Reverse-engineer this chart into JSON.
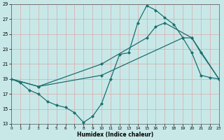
{
  "xlabel": "Humidex (Indice chaleur)",
  "bg_color": "#c8e8e8",
  "line_color": "#1a7070",
  "grid_color": "#dba8a8",
  "xlim": [
    0,
    23
  ],
  "ylim": [
    13,
    29
  ],
  "yticks": [
    13,
    15,
    17,
    19,
    21,
    23,
    25,
    27,
    29
  ],
  "xticks": [
    0,
    1,
    2,
    3,
    4,
    5,
    6,
    7,
    8,
    9,
    10,
    11,
    12,
    13,
    14,
    15,
    16,
    17,
    18,
    19,
    20,
    21,
    22,
    23
  ],
  "line1_x": [
    0,
    1,
    2,
    3,
    4,
    5,
    6,
    7,
    8,
    9,
    10,
    11,
    12,
    13,
    14,
    15,
    16,
    17,
    18,
    19,
    20,
    21,
    22,
    23
  ],
  "line1_y": [
    19,
    18.5,
    17.5,
    17.0,
    16.0,
    15.5,
    15.2,
    14.5,
    13.2,
    14.0,
    15.7,
    19.0,
    22.3,
    22.5,
    26.5,
    28.8,
    28.2,
    27.2,
    26.3,
    24.5,
    22.5,
    19.5,
    19.2,
    19.0
  ],
  "line2_x": [
    0,
    3,
    10,
    19,
    20,
    23
  ],
  "line2_y": [
    19,
    18.0,
    19.5,
    24.5,
    24.5,
    19.0
  ],
  "line3_x": [
    0,
    3,
    10,
    15,
    16,
    17,
    20,
    21,
    23
  ],
  "line3_y": [
    19,
    18.0,
    21.0,
    24.5,
    26.0,
    26.5,
    24.5,
    22.5,
    19.0
  ]
}
